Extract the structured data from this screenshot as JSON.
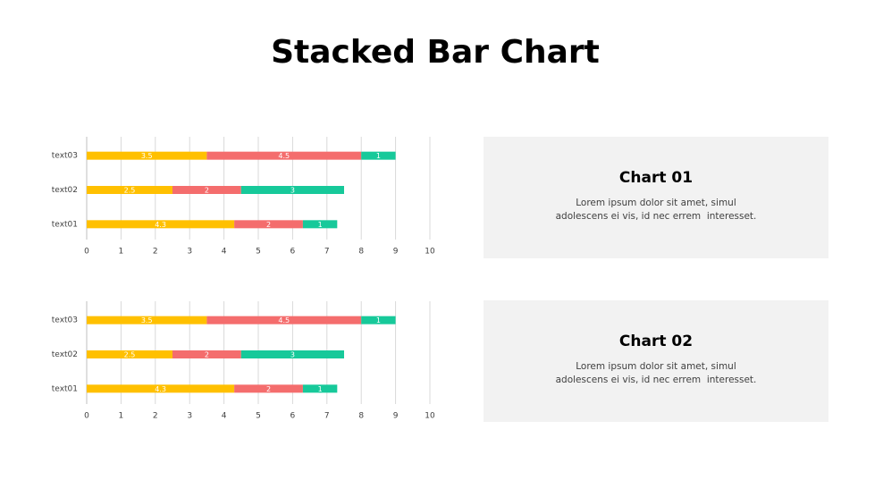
{
  "title": "Stacked Bar Chart",
  "chart_data": [
    {
      "type": "stacked_bar_horizontal",
      "categories": [
        "text01",
        "text02",
        "text03"
      ],
      "series": [
        {
          "color": "#FFC000",
          "values": [
            4.3,
            2.5,
            3.5
          ]
        },
        {
          "color": "#F46D6D",
          "values": [
            2,
            2,
            4.5
          ]
        },
        {
          "color": "#17C99A",
          "values": [
            1,
            3,
            1
          ]
        }
      ],
      "xlim": [
        0,
        10
      ],
      "xticks": [
        0,
        1,
        2,
        3,
        4,
        5,
        6,
        7,
        8,
        9,
        10
      ],
      "grid": true
    },
    {
      "type": "stacked_bar_horizontal",
      "categories": [
        "text01",
        "text02",
        "text03"
      ],
      "series": [
        {
          "color": "#FFC000",
          "values": [
            4.3,
            2.5,
            3.5
          ]
        },
        {
          "color": "#F46D6D",
          "values": [
            2,
            2,
            4.5
          ]
        },
        {
          "color": "#17C99A",
          "values": [
            1,
            3,
            1
          ]
        }
      ],
      "xlim": [
        0,
        10
      ],
      "xticks": [
        0,
        1,
        2,
        3,
        4,
        5,
        6,
        7,
        8,
        9,
        10
      ],
      "grid": true
    }
  ],
  "panels": [
    {
      "heading": "Chart 01",
      "lines": [
        "Lorem ipsum dolor sit amet, simul",
        "adolescens ei vis, id nec errem  interesset."
      ]
    },
    {
      "heading": "Chart 02",
      "lines": [
        "Lorem ipsum dolor sit amet, simul",
        "adolescens ei vis, id nec errem  interesset."
      ]
    }
  ]
}
